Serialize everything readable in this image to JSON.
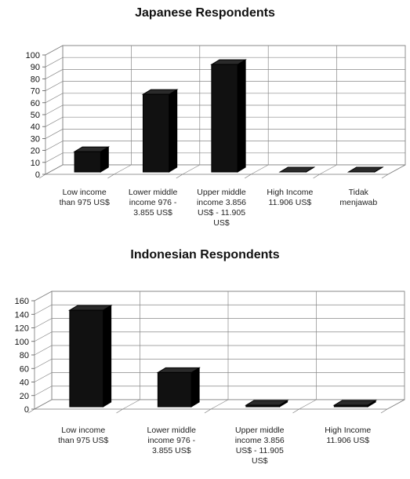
{
  "chart_data": [
    {
      "type": "bar",
      "title": "Japanese Respondents",
      "categories": [
        "Low income than 975 US$",
        "Lower middle income 976 - 3.855 US$",
        "Upper middle income 3.856 US$ - 11.905 US$",
        "High Income 11.906 US$",
        "Tidak menjawab"
      ],
      "category_lines": [
        [
          "Low income",
          "than 975 US$"
        ],
        [
          "Lower middle",
          "income 976 -",
          "3.855 US$"
        ],
        [
          "Upper middle",
          "income 3.856",
          "US$ - 11.905",
          "US$"
        ],
        [
          "High Income",
          "11.906 US$"
        ],
        [
          "Tidak",
          "menjawab"
        ]
      ],
      "values": [
        19,
        67,
        92,
        2,
        2
      ],
      "ylim": [
        0,
        100
      ],
      "yticks": [
        0,
        10,
        20,
        30,
        40,
        50,
        60,
        70,
        80,
        90,
        100
      ],
      "grid": true,
      "legend": "none",
      "bar_color": "#111111"
    },
    {
      "type": "bar",
      "title": "Indonesian Respondents",
      "categories": [
        "Low income than 975 US$",
        "Lower middle income 976 - 3.855 US$",
        "Upper middle income 3.856 US$ - 11.905 US$",
        "High Income 11.906 US$"
      ],
      "category_lines": [
        [
          "Low income",
          "than 975 US$"
        ],
        [
          "Lower middle",
          "income 976 -",
          "3.855 US$"
        ],
        [
          "Upper middle",
          "income 3.856",
          "US$ - 11.905",
          "US$"
        ],
        [
          "High Income",
          "11.906 US$"
        ]
      ],
      "values": [
        146,
        54,
        1,
        1
      ],
      "ylim": [
        0,
        160
      ],
      "yticks": [
        0,
        20,
        40,
        60,
        80,
        100,
        120,
        140,
        160
      ],
      "grid": true,
      "legend": "none",
      "bar_color": "#111111"
    }
  ]
}
